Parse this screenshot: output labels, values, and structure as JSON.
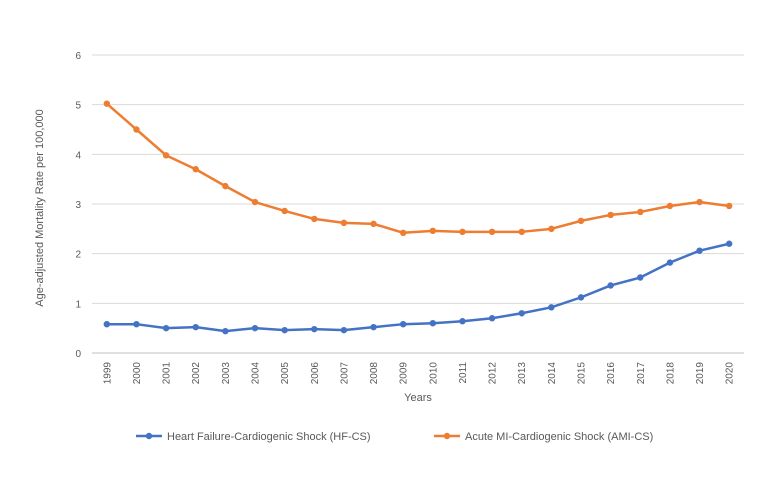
{
  "chart_data": {
    "type": "line",
    "xlabel": "Years",
    "ylabel": "Age-adjusted Mortality Rate per 100,000",
    "ylim": [
      0,
      6
    ],
    "yticks": [
      "0",
      "1",
      "2",
      "3",
      "4",
      "5",
      "6"
    ],
    "grid": true,
    "legend_position": "bottom",
    "categories": [
      "1999",
      "2000",
      "2001",
      "2002",
      "2003",
      "2004",
      "2005",
      "2006",
      "2007",
      "2008",
      "2009",
      "2010",
      "2011",
      "2012",
      "2013",
      "2014",
      "2015",
      "2016",
      "2017",
      "2018",
      "2019",
      "2020"
    ],
    "series": [
      {
        "name": "Heart Failure-Cardiogenic Shock (HF-CS)",
        "color": "#4472C4",
        "values": [
          0.58,
          0.58,
          0.5,
          0.52,
          0.44,
          0.5,
          0.46,
          0.48,
          0.46,
          0.52,
          0.58,
          0.6,
          0.64,
          0.7,
          0.8,
          0.92,
          1.12,
          1.36,
          1.52,
          1.82,
          2.06,
          2.2
        ]
      },
      {
        "name": "Acute MI-Cardiogenic Shock (AMI-CS)",
        "color": "#ED7D31",
        "values": [
          5.02,
          4.5,
          3.98,
          3.7,
          3.36,
          3.04,
          2.86,
          2.7,
          2.62,
          2.6,
          2.42,
          2.46,
          2.44,
          2.44,
          2.44,
          2.5,
          2.66,
          2.78,
          2.84,
          2.96,
          3.04,
          2.96
        ]
      }
    ]
  }
}
